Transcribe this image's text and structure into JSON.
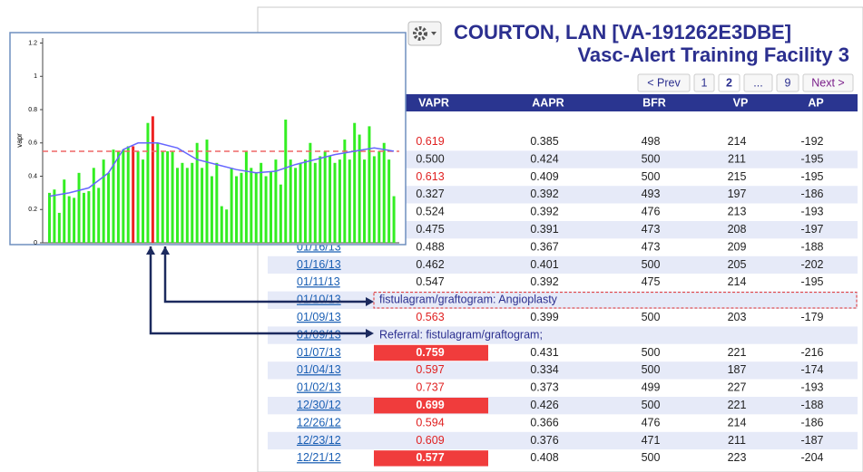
{
  "header": {
    "title": "COURTON, LAN [VA-191262E3DBE]",
    "subtitle": "Vasc-Alert Training Facility 3"
  },
  "pagination": {
    "prev": "< Prev",
    "next": "Next >",
    "pages": [
      {
        "label": "1"
      },
      {
        "label": "2",
        "current": true
      },
      {
        "label": "..."
      },
      {
        "label": "9"
      }
    ]
  },
  "table": {
    "columns": [
      "VAPR",
      "AAPR",
      "BFR",
      "VP",
      "AP"
    ],
    "rows": [
      {
        "date": null,
        "values": [
          "0.619",
          "0.385",
          "498",
          "214",
          "-192"
        ],
        "alert": "red"
      },
      {
        "date": null,
        "values": [
          "0.500",
          "0.424",
          "500",
          "211",
          "-195"
        ]
      },
      {
        "date": null,
        "values": [
          "0.613",
          "0.409",
          "500",
          "215",
          "-195"
        ],
        "alert": "red"
      },
      {
        "date": null,
        "values": [
          "0.327",
          "0.392",
          "493",
          "197",
          "-186"
        ]
      },
      {
        "date": null,
        "values": [
          "0.524",
          "0.392",
          "476",
          "213",
          "-193"
        ]
      },
      {
        "date": null,
        "values": [
          "0.475",
          "0.391",
          "473",
          "208",
          "-197"
        ]
      },
      {
        "date": "01/16/13",
        "values": [
          "0.488",
          "0.367",
          "473",
          "209",
          "-188"
        ]
      },
      {
        "date": "01/16/13",
        "values": [
          "0.462",
          "0.401",
          "500",
          "205",
          "-202"
        ]
      },
      {
        "date": "01/11/13",
        "values": [
          "0.547",
          "0.392",
          "475",
          "214",
          "-195"
        ]
      },
      {
        "date": "01/10/13",
        "note": "fistulagram/graftogram: Angioplasty",
        "style": "dashed"
      },
      {
        "date": "01/09/13",
        "values": [
          "0.563",
          "0.399",
          "500",
          "203",
          "-179"
        ],
        "alert": "red"
      },
      {
        "date": "01/09/13",
        "note": "Referral: fistulagram/graftogram;"
      },
      {
        "date": "01/07/13",
        "values": [
          "0.759",
          "0.431",
          "500",
          "221",
          "-216"
        ],
        "alert": "highlight"
      },
      {
        "date": "01/04/13",
        "values": [
          "0.597",
          "0.334",
          "500",
          "187",
          "-174"
        ],
        "alert": "red"
      },
      {
        "date": "01/02/13",
        "values": [
          "0.737",
          "0.373",
          "499",
          "227",
          "-193"
        ],
        "alert": "red"
      },
      {
        "date": "12/30/12",
        "values": [
          "0.699",
          "0.426",
          "500",
          "221",
          "-188"
        ],
        "alert": "highlight"
      },
      {
        "date": "12/26/12",
        "values": [
          "0.594",
          "0.366",
          "476",
          "214",
          "-186"
        ],
        "alert": "red"
      },
      {
        "date": "12/23/12",
        "values": [
          "0.609",
          "0.376",
          "471",
          "211",
          "-187"
        ],
        "alert": "red"
      },
      {
        "date": "12/21/12",
        "values": [
          "0.577",
          "0.408",
          "500",
          "223",
          "-204"
        ],
        "alert": "highlight"
      }
    ]
  },
  "chart": {
    "type": "bar",
    "y_label": "vapr",
    "ylim": [
      0,
      1.23
    ],
    "yticks": [
      0,
      0.2,
      0.4,
      0.6,
      0.8,
      1,
      1.2
    ],
    "color": "#33ee22",
    "alert_color": "#ee2222",
    "alert_indices": [
      17,
      21
    ],
    "values": [
      0.3,
      0.32,
      0.18,
      0.38,
      0.28,
      0.27,
      0.42,
      0.3,
      0.31,
      0.45,
      0.33,
      0.5,
      0.42,
      0.56,
      0.55,
      0.56,
      0.58,
      0.58,
      0.55,
      0.5,
      0.72,
      0.76,
      0.6,
      0.55,
      0.55,
      0.55,
      0.45,
      0.48,
      0.45,
      0.48,
      0.6,
      0.45,
      0.62,
      0.4,
      0.48,
      0.22,
      0.2,
      0.45,
      0.4,
      0.42,
      0.55,
      0.45,
      0.42,
      0.48,
      0.4,
      0.43,
      0.5,
      0.35,
      0.74,
      0.5,
      0.45,
      0.48,
      0.5,
      0.6,
      0.48,
      0.52,
      0.55,
      0.52,
      0.48,
      0.5,
      0.62,
      0.5,
      0.72,
      0.65,
      0.5,
      0.7,
      0.52,
      0.55,
      0.6,
      0.5,
      0.28
    ],
    "reference_line": 0.55,
    "reference_color": "#ee6666",
    "trend": {
      "color": "#6666ff",
      "x": [
        0,
        4,
        8,
        12,
        15,
        18,
        22,
        26,
        30,
        34,
        38,
        42,
        46,
        50,
        54,
        58,
        62,
        66,
        70
      ],
      "values": [
        0.28,
        0.3,
        0.33,
        0.42,
        0.56,
        0.6,
        0.6,
        0.57,
        0.5,
        0.47,
        0.44,
        0.42,
        0.43,
        0.47,
        0.5,
        0.53,
        0.55,
        0.57,
        0.55
      ]
    }
  }
}
